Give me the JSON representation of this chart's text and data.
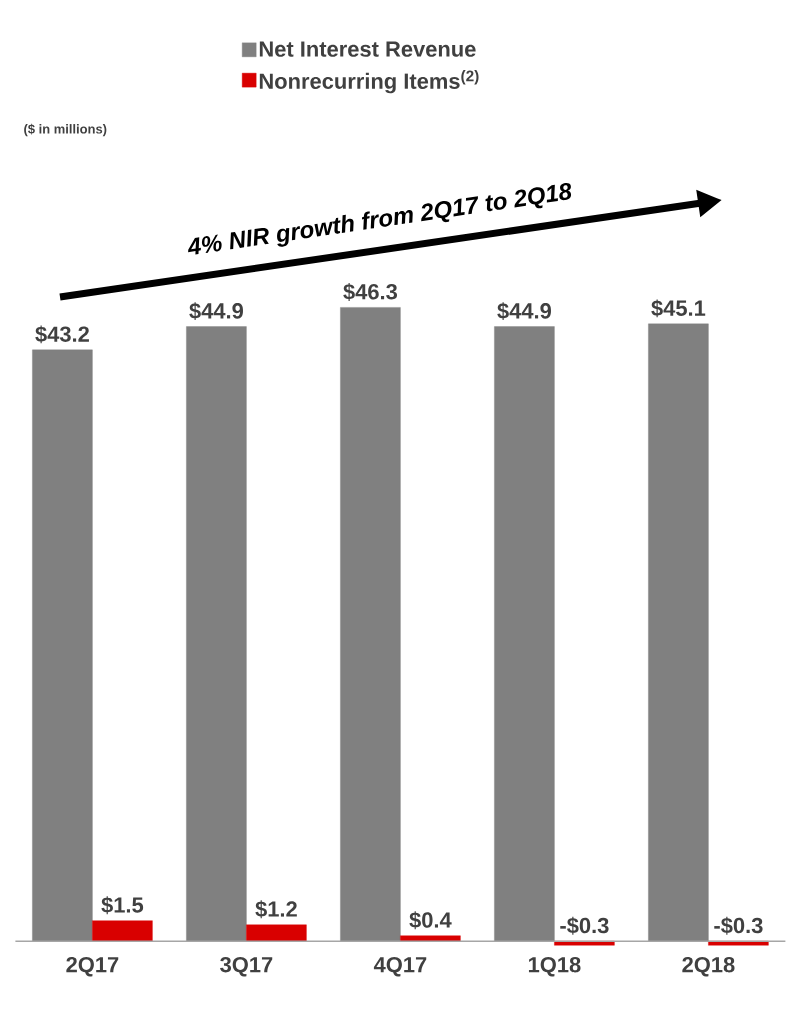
{
  "chart_data": {
    "type": "bar",
    "categories": [
      "2Q17",
      "3Q17",
      "4Q17",
      "1Q18",
      "2Q18"
    ],
    "series": [
      {
        "name": "Net Interest Revenue",
        "color": "#808080",
        "values": [
          43.2,
          44.9,
          46.3,
          44.9,
          45.1
        ],
        "value_labels": [
          "$43.2",
          "$44.9",
          "$46.3",
          "$44.9",
          "$45.1"
        ]
      },
      {
        "name": "Nonrecurring Items$^{(2)}$",
        "color": "#d90000",
        "values": [
          1.5,
          1.2,
          0.4,
          -0.3,
          -0.3
        ],
        "value_labels": [
          "$1.5",
          "$1.2",
          "$0.4",
          "-$0.3",
          "-$0.3"
        ]
      }
    ],
    "annotations": [
      "($ in millions)",
      "4% NIR growth from 2Q17 to 2Q18"
    ],
    "legend": "top"
  }
}
